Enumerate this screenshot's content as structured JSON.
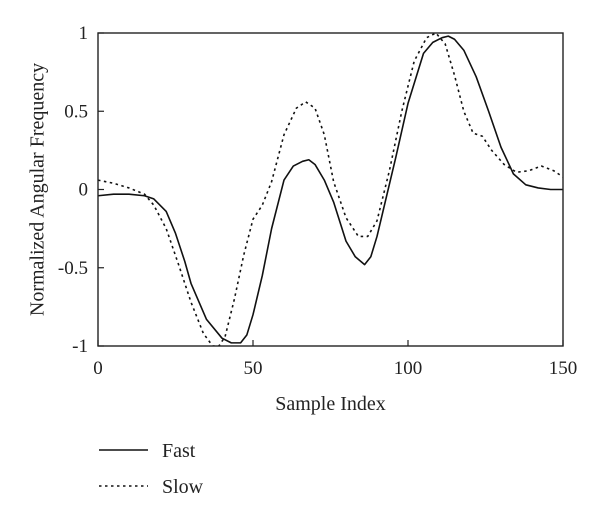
{
  "chart_data": {
    "type": "line",
    "xlabel": "Sample Index",
    "ylabel": "Normalized Angular Frequency",
    "xlim": [
      0,
      150
    ],
    "ylim": [
      -1,
      1
    ],
    "xticks": [
      0,
      50,
      100,
      150
    ],
    "xtick_labels": [
      "0",
      "50",
      "100",
      "150"
    ],
    "yticks": [
      1,
      0.5,
      0,
      -0.5,
      -1
    ],
    "ytick_labels": [
      "1",
      "0.5",
      "0",
      "-0.5",
      "-1"
    ],
    "grid": false,
    "legend_position": "bottom-left, below plot",
    "series": [
      {
        "name": "Fast",
        "line_style": "solid",
        "color": "#111111",
        "x": [
          0,
          5,
          10,
          15,
          18,
          22,
          25,
          28,
          30,
          35,
          40,
          43,
          46,
          48,
          50,
          53,
          56,
          60,
          63,
          66,
          68,
          70,
          73,
          76,
          80,
          83,
          86,
          88,
          90,
          93,
          96,
          100,
          105,
          108,
          111,
          113,
          115,
          118,
          122,
          126,
          130,
          134,
          138,
          142,
          146,
          150
        ],
        "y": [
          -0.04,
          -0.03,
          -0.03,
          -0.04,
          -0.06,
          -0.14,
          -0.28,
          -0.46,
          -0.6,
          -0.83,
          -0.95,
          -0.98,
          -0.98,
          -0.93,
          -0.8,
          -0.55,
          -0.25,
          0.06,
          0.15,
          0.18,
          0.19,
          0.16,
          0.06,
          -0.08,
          -0.33,
          -0.43,
          -0.48,
          -0.43,
          -0.3,
          -0.05,
          0.2,
          0.55,
          0.87,
          0.94,
          0.97,
          0.98,
          0.96,
          0.89,
          0.72,
          0.5,
          0.27,
          0.1,
          0.03,
          0.01,
          0.0,
          0.0
        ]
      },
      {
        "name": "Slow",
        "line_style": "dotted",
        "color": "#111111",
        "x": [
          0,
          5,
          10,
          15,
          18,
          22,
          26,
          30,
          34,
          37,
          39,
          41,
          44,
          47,
          50,
          53,
          56,
          60,
          64,
          67,
          70,
          73,
          76,
          80,
          84,
          87,
          90,
          94,
          98,
          102,
          106,
          109,
          112,
          115,
          118,
          121,
          124,
          127,
          131,
          135,
          139,
          143,
          147,
          150
        ],
        "y": [
          0.06,
          0.04,
          0.01,
          -0.03,
          -0.1,
          -0.25,
          -0.48,
          -0.72,
          -0.92,
          -1.0,
          -1.0,
          -0.94,
          -0.7,
          -0.42,
          -0.19,
          -0.1,
          0.05,
          0.35,
          0.52,
          0.56,
          0.52,
          0.35,
          0.05,
          -0.18,
          -0.3,
          -0.3,
          -0.2,
          0.12,
          0.5,
          0.82,
          0.97,
          1.0,
          0.93,
          0.73,
          0.5,
          0.36,
          0.34,
          0.25,
          0.16,
          0.11,
          0.12,
          0.15,
          0.12,
          0.08
        ]
      }
    ]
  }
}
